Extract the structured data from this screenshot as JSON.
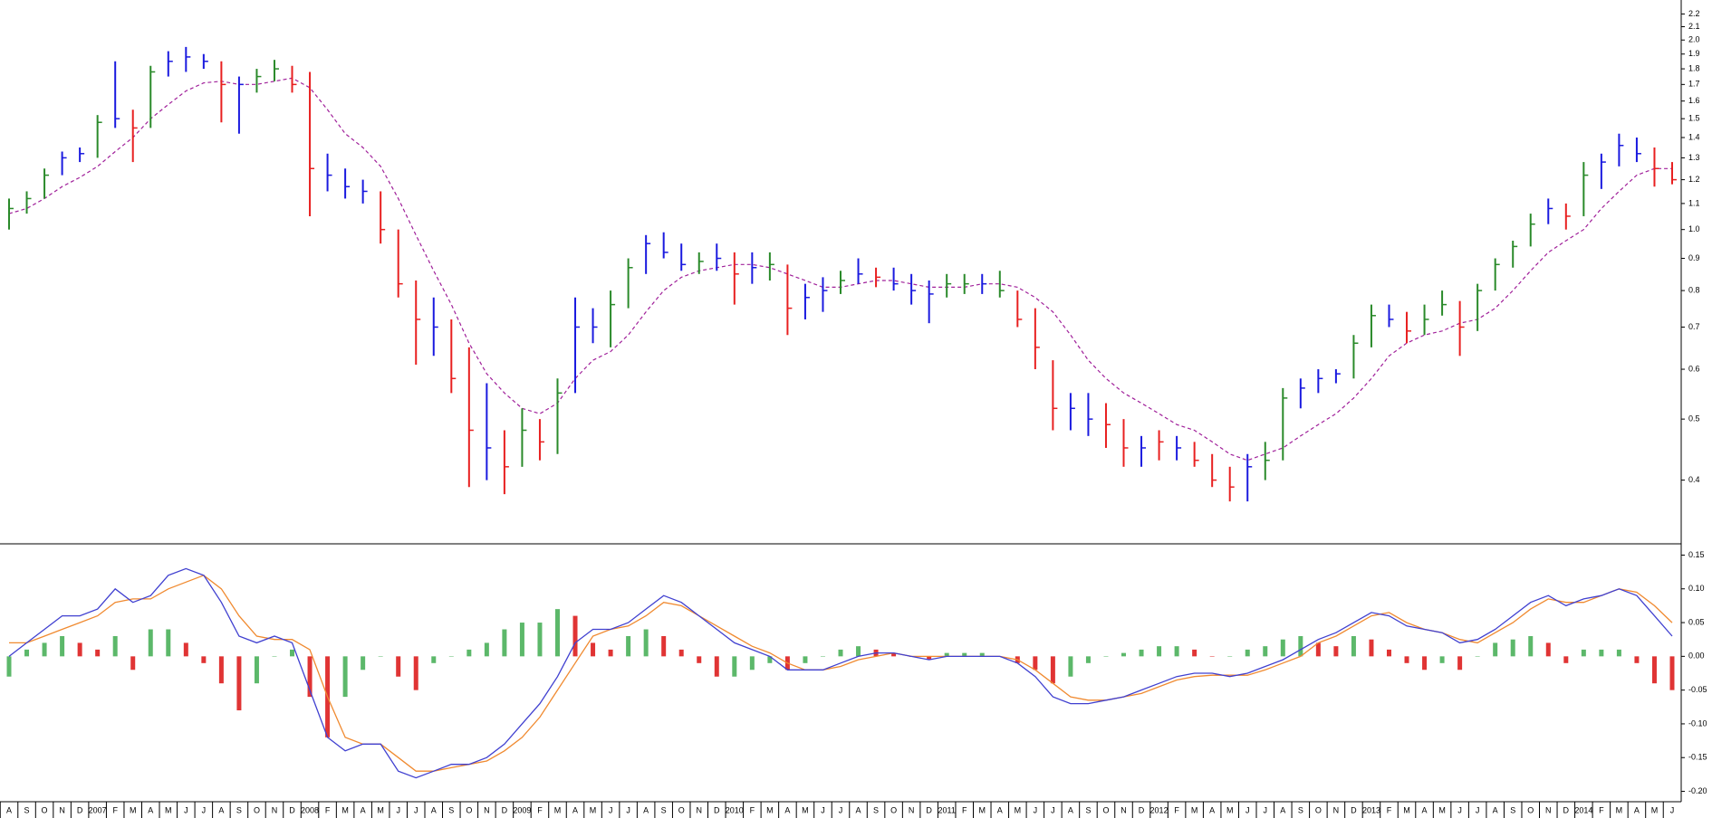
{
  "chart_data": [
    {
      "type": "ohlc",
      "log_scale": true,
      "ylim": [
        0.32,
        2.3
      ],
      "yticks": [
        0.4,
        0.5,
        0.6,
        0.7,
        0.8,
        0.9,
        {
          "value": 1.0,
          "label": "1.0"
        },
        1.1,
        1.2,
        1.3,
        1.4,
        1.5,
        1.6,
        1.7,
        1.8,
        1.9,
        {
          "value": 2.0,
          "label": "2.0"
        },
        2.1,
        2.2
      ],
      "high": [
        1.12,
        1.15,
        1.25,
        1.33,
        1.35,
        1.52,
        1.85,
        1.55,
        1.82,
        1.92,
        1.95,
        1.9,
        1.85,
        1.75,
        1.8,
        1.86,
        1.82,
        1.78,
        1.32,
        1.25,
        1.2,
        1.15,
        1.0,
        0.83,
        0.78,
        0.72,
        0.65,
        0.57,
        0.48,
        0.52,
        0.5,
        0.58,
        0.78,
        0.75,
        0.8,
        0.9,
        0.98,
        0.99,
        0.95,
        0.92,
        0.95,
        0.92,
        0.92,
        0.92,
        0.88,
        0.82,
        0.84,
        0.86,
        0.9,
        0.87,
        0.87,
        0.85,
        0.83,
        0.85,
        0.85,
        0.85,
        0.86,
        0.8,
        0.75,
        0.62,
        0.55,
        0.55,
        0.53,
        0.5,
        0.47,
        0.48,
        0.47,
        0.46,
        0.44,
        0.42,
        0.44,
        0.46,
        0.56,
        0.58,
        0.6,
        0.6,
        0.68,
        0.76,
        0.76,
        0.74,
        0.76,
        0.8,
        0.77,
        0.82,
        0.9,
        0.96,
        1.06,
        1.12,
        1.1,
        1.28,
        1.32,
        1.42,
        1.4,
        1.35,
        1.28
      ],
      "low": [
        1.0,
        1.06,
        1.12,
        1.22,
        1.28,
        1.3,
        1.45,
        1.28,
        1.45,
        1.75,
        1.78,
        1.8,
        1.48,
        1.42,
        1.65,
        1.72,
        1.65,
        1.05,
        1.15,
        1.12,
        1.1,
        0.95,
        0.78,
        0.61,
        0.63,
        0.55,
        0.39,
        0.4,
        0.38,
        0.42,
        0.43,
        0.44,
        0.55,
        0.66,
        0.65,
        0.75,
        0.85,
        0.9,
        0.86,
        0.85,
        0.86,
        0.76,
        0.82,
        0.83,
        0.68,
        0.72,
        0.74,
        0.79,
        0.82,
        0.81,
        0.8,
        0.76,
        0.71,
        0.78,
        0.79,
        0.79,
        0.78,
        0.7,
        0.6,
        0.48,
        0.48,
        0.47,
        0.45,
        0.42,
        0.42,
        0.43,
        0.43,
        0.42,
        0.39,
        0.37,
        0.37,
        0.4,
        0.43,
        0.52,
        0.55,
        0.57,
        0.58,
        0.65,
        0.7,
        0.66,
        0.68,
        0.73,
        0.63,
        0.69,
        0.8,
        0.87,
        0.94,
        1.02,
        1.0,
        1.05,
        1.16,
        1.26,
        1.28,
        1.17,
        1.18
      ],
      "close": [
        1.08,
        1.12,
        1.22,
        1.3,
        1.32,
        1.48,
        1.5,
        1.45,
        1.78,
        1.85,
        1.88,
        1.85,
        1.7,
        1.7,
        1.75,
        1.8,
        1.7,
        1.25,
        1.22,
        1.17,
        1.15,
        1.0,
        0.82,
        0.72,
        0.7,
        0.58,
        0.48,
        0.45,
        0.42,
        0.48,
        0.46,
        0.55,
        0.7,
        0.7,
        0.76,
        0.87,
        0.95,
        0.92,
        0.88,
        0.89,
        0.9,
        0.85,
        0.87,
        0.88,
        0.75,
        0.78,
        0.8,
        0.83,
        0.85,
        0.84,
        0.82,
        0.8,
        0.79,
        0.82,
        0.82,
        0.82,
        0.8,
        0.72,
        0.65,
        0.52,
        0.52,
        0.5,
        0.49,
        0.45,
        0.45,
        0.46,
        0.45,
        0.43,
        0.4,
        0.39,
        0.42,
        0.43,
        0.54,
        0.56,
        0.58,
        0.59,
        0.66,
        0.73,
        0.72,
        0.69,
        0.72,
        0.76,
        0.7,
        0.8,
        0.88,
        0.94,
        1.02,
        1.08,
        1.05,
        1.22,
        1.28,
        1.36,
        1.32,
        1.25,
        1.2
      ],
      "bar_colors": [
        "#2a8a2a",
        "#2a8a2a",
        "#2a8a2a",
        "#1a1adf",
        "#1a1adf",
        "#2a8a2a",
        "#1a1adf",
        "#e82020",
        "#2a8a2a",
        "#1a1adf",
        "#1a1adf",
        "#1a1adf",
        "#e82020",
        "#1a1adf",
        "#2a8a2a",
        "#2a8a2a",
        "#e82020",
        "#e82020",
        "#1a1adf",
        "#1a1adf",
        "#1a1adf",
        "#e82020",
        "#e82020",
        "#e82020",
        "#1a1adf",
        "#e82020",
        "#e82020",
        "#1a1adf",
        "#e82020",
        "#2a8a2a",
        "#e82020",
        "#2a8a2a",
        "#1a1adf",
        "#1a1adf",
        "#2a8a2a",
        "#2a8a2a",
        "#1a1adf",
        "#1a1adf",
        "#1a1adf",
        "#2a8a2a",
        "#1a1adf",
        "#e82020",
        "#1a1adf",
        "#2a8a2a",
        "#e82020",
        "#1a1adf",
        "#1a1adf",
        "#2a8a2a",
        "#1a1adf",
        "#e82020",
        "#1a1adf",
        "#1a1adf",
        "#1a1adf",
        "#2a8a2a",
        "#2a8a2a",
        "#1a1adf",
        "#2a8a2a",
        "#e82020",
        "#e82020",
        "#e82020",
        "#1a1adf",
        "#1a1adf",
        "#e82020",
        "#e82020",
        "#1a1adf",
        "#e82020",
        "#1a1adf",
        "#e82020",
        "#e82020",
        "#e82020",
        "#1a1adf",
        "#2a8a2a",
        "#2a8a2a",
        "#1a1adf",
        "#1a1adf",
        "#1a1adf",
        "#2a8a2a",
        "#2a8a2a",
        "#1a1adf",
        "#e82020",
        "#2a8a2a",
        "#2a8a2a",
        "#e82020",
        "#2a8a2a",
        "#2a8a2a",
        "#2a8a2a",
        "#2a8a2a",
        "#1a1adf",
        "#e82020",
        "#2a8a2a",
        "#1a1adf",
        "#1a1adf",
        "#1a1adf",
        "#e82020",
        "#e82020"
      ],
      "moving_average": {
        "color": "#a0209a",
        "dashed": true,
        "values": [
          1.06,
          1.08,
          1.12,
          1.17,
          1.21,
          1.26,
          1.33,
          1.4,
          1.5,
          1.58,
          1.66,
          1.71,
          1.72,
          1.7,
          1.7,
          1.72,
          1.74,
          1.68,
          1.55,
          1.42,
          1.35,
          1.26,
          1.12,
          0.98,
          0.86,
          0.76,
          0.66,
          0.59,
          0.55,
          0.52,
          0.51,
          0.53,
          0.58,
          0.62,
          0.64,
          0.68,
          0.74,
          0.8,
          0.84,
          0.86,
          0.87,
          0.88,
          0.88,
          0.87,
          0.85,
          0.83,
          0.81,
          0.81,
          0.82,
          0.83,
          0.83,
          0.82,
          0.81,
          0.81,
          0.81,
          0.82,
          0.82,
          0.81,
          0.78,
          0.74,
          0.68,
          0.62,
          0.58,
          0.55,
          0.53,
          0.51,
          0.49,
          0.48,
          0.46,
          0.44,
          0.43,
          0.44,
          0.45,
          0.47,
          0.49,
          0.51,
          0.54,
          0.58,
          0.63,
          0.66,
          0.68,
          0.69,
          0.71,
          0.72,
          0.75,
          0.8,
          0.86,
          0.92,
          0.96,
          1.0,
          1.08,
          1.15,
          1.22,
          1.25,
          1.25
        ]
      }
    },
    {
      "type": "macd",
      "ylim": [
        -0.21,
        0.16
      ],
      "yticks": [
        0.15,
        {
          "value": 0.1,
          "label": "0.10"
        },
        0.05,
        {
          "value": 0,
          "label": "0.00"
        },
        -0.05,
        {
          "value": -0.1,
          "label": "-0.10"
        },
        -0.15,
        {
          "value": -0.2,
          "label": "-0.20"
        }
      ],
      "categories": [
        "A",
        "S",
        "O",
        "N",
        "D",
        "2007",
        "F",
        "M",
        "A",
        "M",
        "J",
        "J",
        "A",
        "S",
        "O",
        "N",
        "D",
        "2008",
        "F",
        "M",
        "A",
        "M",
        "J",
        "J",
        "A",
        "S",
        "O",
        "N",
        "D",
        "2009",
        "F",
        "M",
        "A",
        "M",
        "J",
        "J",
        "A",
        "S",
        "O",
        "N",
        "D",
        "2010",
        "F",
        "M",
        "A",
        "M",
        "J",
        "J",
        "A",
        "S",
        "O",
        "N",
        "D",
        "2011",
        "F",
        "M",
        "A",
        "M",
        "J",
        "J",
        "A",
        "S",
        "O",
        "N",
        "D",
        "2012",
        "F",
        "M",
        "A",
        "M",
        "J",
        "J",
        "A",
        "S",
        "O",
        "N",
        "D",
        "2013",
        "F",
        "M",
        "A",
        "M",
        "J",
        "J",
        "A",
        "S",
        "O",
        "N",
        "D",
        "2014",
        "F",
        "M",
        "A",
        "M",
        "J"
      ],
      "macd": {
        "color": "#4040d0",
        "values": [
          0.0,
          0.02,
          0.04,
          0.06,
          0.06,
          0.07,
          0.1,
          0.08,
          0.09,
          0.12,
          0.13,
          0.12,
          0.08,
          0.03,
          0.02,
          0.03,
          0.02,
          -0.05,
          -0.12,
          -0.14,
          -0.13,
          -0.13,
          -0.17,
          -0.18,
          -0.17,
          -0.16,
          -0.16,
          -0.15,
          -0.13,
          -0.1,
          -0.07,
          -0.03,
          0.02,
          0.04,
          0.04,
          0.05,
          0.07,
          0.09,
          0.08,
          0.06,
          0.04,
          0.02,
          0.01,
          0.0,
          -0.02,
          -0.02,
          -0.02,
          -0.01,
          0.0,
          0.005,
          0.005,
          0.0,
          -0.005,
          0.0,
          0.0,
          0.0,
          0.0,
          -0.01,
          -0.03,
          -0.06,
          -0.07,
          -0.07,
          -0.065,
          -0.06,
          -0.05,
          -0.04,
          -0.03,
          -0.025,
          -0.025,
          -0.03,
          -0.025,
          -0.015,
          -0.005,
          0.01,
          0.025,
          0.035,
          0.05,
          0.065,
          0.06,
          0.045,
          0.04,
          0.035,
          0.02,
          0.025,
          0.04,
          0.06,
          0.08,
          0.09,
          0.075,
          0.085,
          0.09,
          0.1,
          0.09,
          0.06,
          0.03
        ]
      },
      "signal": {
        "color": "#f08a30",
        "values": [
          0.02,
          0.02,
          0.03,
          0.04,
          0.05,
          0.06,
          0.08,
          0.085,
          0.085,
          0.1,
          0.11,
          0.12,
          0.1,
          0.06,
          0.03,
          0.025,
          0.025,
          0.01,
          -0.06,
          -0.12,
          -0.13,
          -0.13,
          -0.15,
          -0.17,
          -0.17,
          -0.165,
          -0.16,
          -0.155,
          -0.14,
          -0.12,
          -0.09,
          -0.05,
          -0.01,
          0.03,
          0.04,
          0.045,
          0.06,
          0.08,
          0.075,
          0.06,
          0.045,
          0.03,
          0.015,
          0.005,
          -0.01,
          -0.02,
          -0.02,
          -0.015,
          -0.005,
          0.0,
          0.005,
          0.0,
          0.0,
          0.0,
          0.0,
          0.0,
          0.0,
          -0.005,
          -0.02,
          -0.04,
          -0.06,
          -0.065,
          -0.065,
          -0.06,
          -0.055,
          -0.045,
          -0.035,
          -0.03,
          -0.028,
          -0.028,
          -0.028,
          -0.02,
          -0.01,
          0.0,
          0.02,
          0.03,
          0.045,
          0.06,
          0.065,
          0.05,
          0.04,
          0.035,
          0.025,
          0.02,
          0.035,
          0.05,
          0.07,
          0.085,
          0.08,
          0.08,
          0.09,
          0.1,
          0.095,
          0.075,
          0.05
        ]
      },
      "histogram": {
        "up_color": "#5cb86a",
        "down_color": "#e03434",
        "values": [
          -0.03,
          0.01,
          0.02,
          0.03,
          0.02,
          0.01,
          0.03,
          -0.02,
          0.04,
          0.04,
          0.02,
          -0.01,
          -0.04,
          -0.08,
          -0.04,
          0.0,
          0.01,
          -0.06,
          -0.12,
          -0.06,
          -0.02,
          0.0,
          -0.03,
          -0.05,
          -0.01,
          0.0,
          0.01,
          0.02,
          0.04,
          0.05,
          0.05,
          0.07,
          0.06,
          0.02,
          0.01,
          0.03,
          0.04,
          0.03,
          0.01,
          -0.01,
          -0.03,
          -0.03,
          -0.02,
          -0.01,
          -0.02,
          -0.01,
          0.0,
          0.01,
          0.015,
          0.01,
          0.005,
          0.0,
          -0.005,
          0.005,
          0.005,
          0.005,
          0.0,
          -0.01,
          -0.02,
          -0.04,
          -0.03,
          -0.01,
          0.0,
          0.005,
          0.01,
          0.015,
          0.015,
          0.01,
          0.0,
          0.0,
          0.01,
          0.015,
          0.025,
          0.03,
          0.02,
          0.015,
          0.03,
          0.025,
          0.01,
          -0.01,
          -0.02,
          -0.01,
          -0.02,
          0.0,
          0.02,
          0.025,
          0.03,
          0.02,
          -0.01,
          0.01,
          0.01,
          0.01,
          -0.01,
          -0.04,
          -0.05
        ]
      }
    }
  ]
}
